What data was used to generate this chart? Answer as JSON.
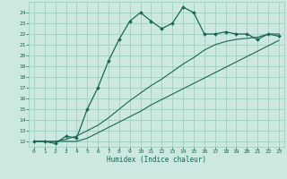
{
  "title": "",
  "xlabel": "Humidex (Indice chaleur)",
  "bg_color": "#cce8e0",
  "grid_color": "#99ccbb",
  "line_color": "#1a6655",
  "x_values": [
    0,
    1,
    2,
    3,
    4,
    5,
    6,
    7,
    8,
    9,
    10,
    11,
    12,
    13,
    14,
    15,
    16,
    17,
    18,
    19,
    20,
    21,
    22,
    23
  ],
  "main_y": [
    12,
    12,
    11.8,
    12.5,
    12.3,
    15,
    17,
    19.5,
    21.5,
    23.2,
    24,
    23.2,
    22.5,
    23,
    24.5,
    24,
    22,
    22,
    22.2,
    22,
    22,
    21.5,
    22,
    21.8
  ],
  "line2_y": [
    12,
    12.0,
    12.0,
    12.2,
    12.5,
    13.0,
    13.5,
    14.2,
    15.0,
    15.8,
    16.5,
    17.2,
    17.8,
    18.5,
    19.2,
    19.8,
    20.5,
    21.0,
    21.3,
    21.5,
    21.6,
    21.7,
    22.0,
    22.0
  ],
  "line3_y": [
    12,
    12.0,
    12.0,
    12.0,
    12.0,
    12.3,
    12.8,
    13.3,
    13.8,
    14.3,
    14.8,
    15.4,
    15.9,
    16.4,
    16.9,
    17.4,
    17.9,
    18.4,
    18.9,
    19.4,
    19.9,
    20.4,
    20.9,
    21.4
  ],
  "ylim": [
    11.5,
    25.0
  ],
  "xlim": [
    -0.5,
    23.5
  ],
  "yticks": [
    12,
    13,
    14,
    15,
    16,
    17,
    18,
    19,
    20,
    21,
    22,
    23,
    24
  ],
  "xticks": [
    0,
    1,
    2,
    3,
    4,
    5,
    6,
    7,
    8,
    9,
    10,
    11,
    12,
    13,
    14,
    15,
    16,
    17,
    18,
    19,
    20,
    21,
    22,
    23
  ]
}
